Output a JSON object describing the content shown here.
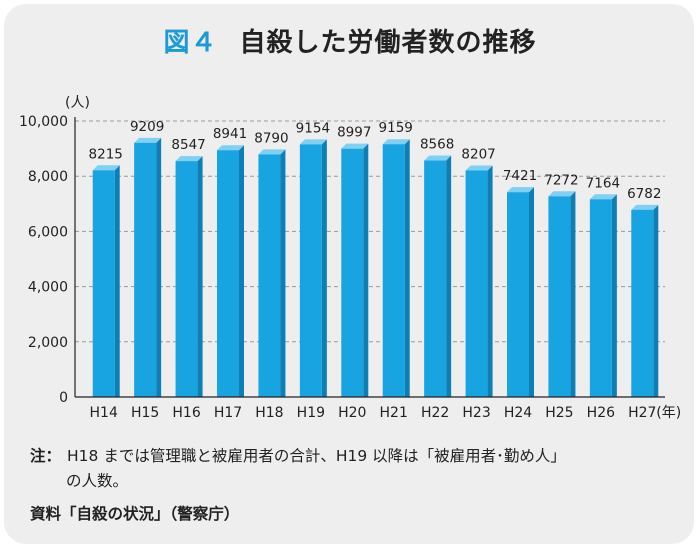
{
  "title": {
    "figure_label": "図４",
    "text": "自殺した労働者数の推移"
  },
  "chart_data": {
    "type": "bar",
    "categories": [
      "H14",
      "H15",
      "H16",
      "H17",
      "H18",
      "H19",
      "H20",
      "H21",
      "H22",
      "H23",
      "H24",
      "H25",
      "H26",
      "H27"
    ],
    "values": [
      8215,
      9209,
      8547,
      8941,
      8790,
      9154,
      8997,
      9159,
      8568,
      8207,
      7421,
      7272,
      7164,
      6782
    ],
    "value_labels": [
      "8215",
      "9209",
      "8547",
      "8941",
      "8790",
      "9154",
      "8997",
      "9159",
      "8568",
      "8207",
      "7421",
      "7272",
      "7164",
      "6782"
    ],
    "ylim": [
      0,
      10000
    ],
    "yticks": [
      0,
      2000,
      4000,
      6000,
      8000,
      10000
    ],
    "ytick_labels": [
      "0",
      "2,000",
      "4,000",
      "6,000",
      "8,000",
      "10,000"
    ],
    "y_unit": "(人)",
    "x_unit": "(年)",
    "grid": "dashed horizontal",
    "bar_color": "#18a4e0",
    "bar_top_color": "#7fd0f2",
    "bar_side_color": "#0d7fb5"
  },
  "note": {
    "label": "注：",
    "line1": "H18 までは管理職と被雇用者の合計、H19 以降は「被雇用者･勤め人」",
    "line2": "の人数。"
  },
  "source": "資料「自殺の状況」（警察庁）"
}
